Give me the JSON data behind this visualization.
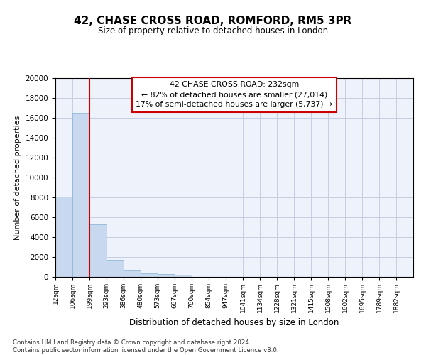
{
  "title": "42, CHASE CROSS ROAD, ROMFORD, RM5 3PR",
  "subtitle": "Size of property relative to detached houses in London",
  "xlabel": "Distribution of detached houses by size in London",
  "ylabel": "Number of detached properties",
  "bar_color": "#c8d8ee",
  "bar_edge_color": "#90b8d8",
  "vline_color": "#cc0000",
  "vline_x_index": 2,
  "annotation_line1": "42 CHASE CROSS ROAD: 232sqm",
  "annotation_line2": "← 82% of detached houses are smaller (27,014)",
  "annotation_line3": "17% of semi-detached houses are larger (5,737) →",
  "annotation_box_color": "#ffffff",
  "annotation_box_edge": "#cc0000",
  "footer_text": "Contains HM Land Registry data © Crown copyright and database right 2024.\nContains public sector information licensed under the Open Government Licence v3.0.",
  "categories": [
    "12sqm",
    "106sqm",
    "199sqm",
    "293sqm",
    "386sqm",
    "480sqm",
    "573sqm",
    "667sqm",
    "760sqm",
    "854sqm",
    "947sqm",
    "1041sqm",
    "1134sqm",
    "1228sqm",
    "1321sqm",
    "1415sqm",
    "1508sqm",
    "1602sqm",
    "1695sqm",
    "1789sqm",
    "1882sqm"
  ],
  "values": [
    8100,
    16500,
    5300,
    1750,
    750,
    350,
    280,
    190,
    0,
    0,
    0,
    0,
    0,
    0,
    0,
    0,
    0,
    0,
    0,
    0,
    0
  ],
  "ylim": [
    0,
    20000
  ],
  "yticks": [
    0,
    2000,
    4000,
    6000,
    8000,
    10000,
    12000,
    14000,
    16000,
    18000,
    20000
  ],
  "bg_color": "#eef2fa",
  "grid_color": "#c8cce0"
}
